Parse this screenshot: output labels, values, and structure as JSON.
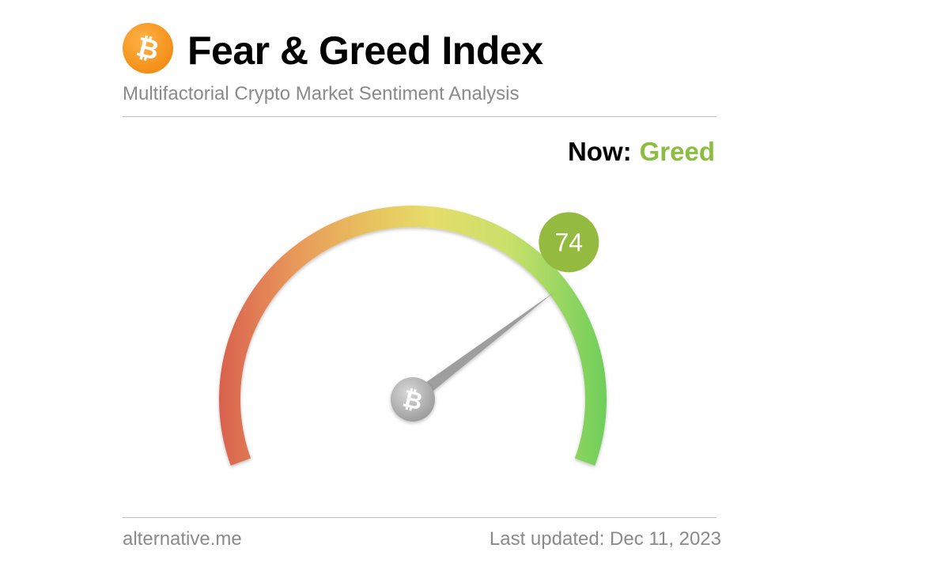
{
  "header": {
    "title": "Fear & Greed Index",
    "subtitle": "Multifactorial Crypto Market Sentiment Analysis",
    "logo_icon": "bitcoin-icon",
    "logo_color": "#f7931a"
  },
  "status": {
    "now_label": "Now:",
    "classification": "Greed",
    "classification_color": "#8bbd3e"
  },
  "chart_data": {
    "type": "gauge",
    "value": 74,
    "min": 0,
    "max": 100,
    "value_label": "74",
    "badge_color": "#94bb3f",
    "gradient_colors": [
      "#d9614e",
      "#e89a5a",
      "#e8c45e",
      "#e6dd6a",
      "#c8e06a",
      "#6fce5a"
    ],
    "needle_color": "#9e9e9e",
    "hub_icon": "bitcoin-icon"
  },
  "footer": {
    "source": "alternative.me",
    "last_updated": "Last updated: Dec 11, 2023"
  }
}
